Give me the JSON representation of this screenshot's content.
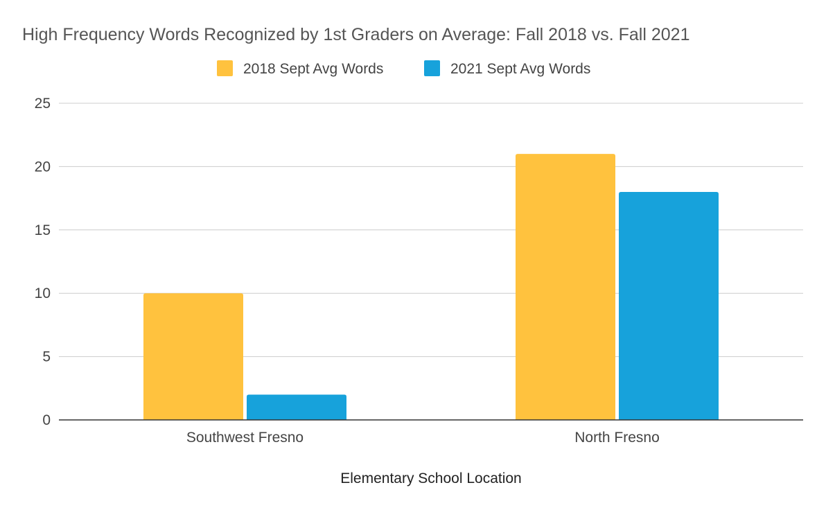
{
  "chart_data": {
    "type": "bar",
    "title": "High Frequency Words Recognized by 1st Graders on Average: Fall 2018 vs. Fall 2021",
    "xlabel": "Elementary School Location",
    "ylabel": "",
    "categories": [
      "Southwest Fresno",
      "North Fresno"
    ],
    "series": [
      {
        "name": "2018 Sept Avg Words",
        "values": [
          10,
          21
        ],
        "color": "#FFC23E"
      },
      {
        "name": "2021 Sept Avg Words",
        "values": [
          2,
          18
        ],
        "color": "#17A2DB"
      }
    ],
    "ylim": [
      0,
      25
    ],
    "yticks": [
      0,
      5,
      10,
      15,
      20,
      25
    ],
    "ytick_labels": [
      "0",
      "5",
      "10",
      "15",
      "20",
      "25"
    ],
    "grid": true,
    "legend_position": "top"
  }
}
